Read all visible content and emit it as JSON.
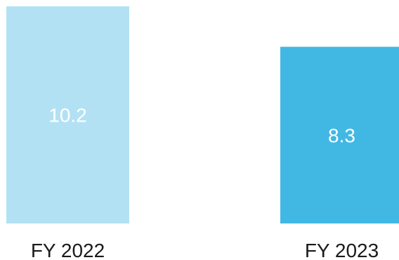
{
  "chart_data": {
    "type": "bar",
    "categories": [
      "FY 2022",
      "FY 2023"
    ],
    "values": [
      10.2,
      8.3
    ],
    "value_labels": [
      "10.2",
      "8.3"
    ],
    "colors": [
      "#b3e1f4",
      "#41b8e4"
    ],
    "title": "",
    "xlabel": "",
    "ylabel": "",
    "ylim": [
      0,
      10.2
    ],
    "grid": false,
    "legend": "none"
  }
}
